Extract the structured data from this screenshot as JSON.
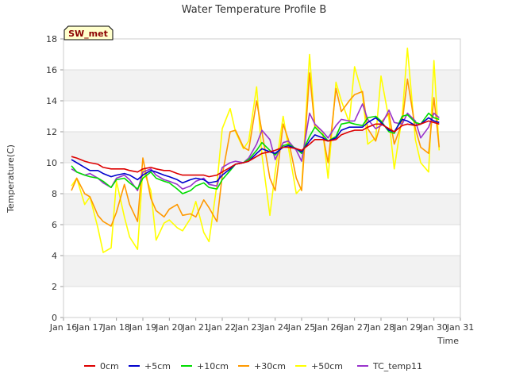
{
  "chart_data": {
    "type": "line",
    "title": "Water Temperature Profile B",
    "xlabel": "Time",
    "ylabel": "Temperature(C)",
    "badge": "SW_met",
    "x_ticks": [
      "Jan 16",
      "Jan 17",
      "Jan 18",
      "Jan 19",
      "Jan 20",
      "Jan 21",
      "Jan 22",
      "Jan 23",
      "Jan 24",
      "Jan 25",
      "Jan 26",
      "Jan 27",
      "Jan 28",
      "Jan 29",
      "Jan 30",
      "Jan 31"
    ],
    "y_ticks": [
      "0",
      "2",
      "4",
      "6",
      "8",
      "10",
      "12",
      "14",
      "16",
      "18"
    ],
    "xlim": [
      16,
      31
    ],
    "ylim": [
      0,
      18
    ],
    "background_bands": true,
    "legend_position": "bottom",
    "x": [
      16.3,
      16.5,
      16.8,
      17.0,
      17.3,
      17.5,
      17.8,
      18.0,
      18.3,
      18.5,
      18.8,
      19.0,
      19.3,
      19.5,
      19.8,
      20.0,
      20.3,
      20.5,
      20.8,
      21.0,
      21.3,
      21.5,
      21.8,
      22.0,
      22.3,
      22.5,
      22.8,
      23.0,
      23.3,
      23.5,
      23.8,
      24.0,
      24.3,
      24.5,
      24.8,
      25.0,
      25.3,
      25.5,
      25.8,
      26.0,
      26.3,
      26.5,
      26.8,
      27.0,
      27.3,
      27.5,
      27.8,
      28.0,
      28.3,
      28.5,
      28.8,
      29.0,
      29.3,
      29.5,
      29.8,
      30.0,
      30.2
    ],
    "series": [
      {
        "name": "0cm",
        "color": "#dd0000",
        "values": [
          10.4,
          10.3,
          10.1,
          10.0,
          9.9,
          9.7,
          9.6,
          9.6,
          9.6,
          9.5,
          9.4,
          9.6,
          9.7,
          9.6,
          9.5,
          9.5,
          9.3,
          9.2,
          9.2,
          9.2,
          9.2,
          9.1,
          9.2,
          9.4,
          9.7,
          9.9,
          10.0,
          10.1,
          10.4,
          10.6,
          10.7,
          10.8,
          11.0,
          11.0,
          10.9,
          10.8,
          11.2,
          11.5,
          11.5,
          11.4,
          11.5,
          11.8,
          12.0,
          12.1,
          12.1,
          12.3,
          12.5,
          12.5,
          12.2,
          12.0,
          12.4,
          12.5,
          12.4,
          12.5,
          12.7,
          12.6,
          12.5
        ]
      },
      {
        "name": "+5cm",
        "color": "#0000cc",
        "values": [
          10.2,
          10.0,
          9.7,
          9.5,
          9.5,
          9.3,
          9.1,
          9.2,
          9.3,
          9.2,
          8.9,
          9.2,
          9.5,
          9.4,
          9.2,
          9.1,
          8.9,
          8.7,
          8.9,
          9.0,
          8.9,
          8.7,
          8.8,
          9.2,
          9.6,
          9.9,
          10.0,
          10.1,
          10.6,
          10.9,
          10.7,
          10.6,
          11.0,
          11.1,
          10.9,
          10.7,
          11.4,
          11.8,
          11.6,
          11.4,
          11.6,
          12.1,
          12.3,
          12.3,
          12.3,
          12.6,
          12.9,
          12.6,
          12.1,
          12.0,
          12.8,
          12.7,
          12.4,
          12.5,
          12.9,
          12.7,
          12.6
        ]
      },
      {
        "name": "+10cm",
        "color": "#00dd00",
        "values": [
          9.8,
          9.4,
          9.2,
          9.1,
          9.0,
          8.8,
          8.4,
          8.9,
          9.0,
          8.7,
          8.3,
          9.0,
          9.4,
          9.0,
          8.8,
          8.7,
          8.3,
          8.0,
          8.2,
          8.5,
          8.7,
          8.4,
          8.3,
          8.9,
          9.5,
          9.9,
          10.0,
          10.2,
          10.8,
          11.3,
          10.8,
          10.5,
          11.1,
          11.2,
          10.9,
          10.6,
          11.7,
          12.3,
          11.8,
          11.4,
          11.7,
          12.5,
          12.6,
          12.5,
          12.4,
          12.9,
          13.0,
          12.7,
          12.0,
          11.9,
          13.0,
          13.1,
          12.6,
          12.5,
          13.2,
          12.9,
          12.8
        ]
      },
      {
        "name": "+30cm",
        "color": "#ff9900",
        "values": [
          8.2,
          9.0,
          8.0,
          7.8,
          6.6,
          6.2,
          5.9,
          6.8,
          8.6,
          7.3,
          6.2,
          10.3,
          7.7,
          6.9,
          6.5,
          7.0,
          7.3,
          6.6,
          6.7,
          6.5,
          7.6,
          7.1,
          6.2,
          9.2,
          12.0,
          12.1,
          11.0,
          10.8,
          14.0,
          12.0,
          9.0,
          8.2,
          12.5,
          11.5,
          9.0,
          8.2,
          15.8,
          12.3,
          11.8,
          10.0,
          14.8,
          13.3,
          14.0,
          14.4,
          14.6,
          12.2,
          11.4,
          12.6,
          13.2,
          11.2,
          12.6,
          15.4,
          12.2,
          11.0,
          10.6,
          14.2,
          11.0
        ]
      },
      {
        "name": "+50cm",
        "color": "#ffff00",
        "values": [
          8.5,
          9.0,
          7.3,
          7.8,
          5.8,
          4.2,
          4.5,
          8.8,
          6.5,
          5.2,
          4.4,
          9.6,
          8.2,
          5.0,
          6.1,
          6.3,
          5.8,
          5.6,
          6.4,
          7.5,
          5.5,
          4.9,
          8.6,
          12.2,
          13.5,
          12.0,
          10.9,
          11.4,
          14.9,
          10.5,
          6.6,
          9.4,
          13.0,
          11.0,
          8.0,
          8.4,
          17.0,
          12.4,
          12.0,
          9.0,
          15.2,
          14.0,
          12.6,
          16.2,
          14.4,
          11.2,
          11.6,
          15.6,
          12.8,
          9.6,
          13.0,
          17.4,
          11.5,
          10.0,
          9.4,
          16.6,
          10.8
        ]
      },
      {
        "name": "TC_temp11",
        "color": "#9933cc",
        "values": [
          9.6,
          9.4,
          9.2,
          9.3,
          9.0,
          8.7,
          8.4,
          9.0,
          9.2,
          8.9,
          8.2,
          9.4,
          9.6,
          9.2,
          8.9,
          8.8,
          8.6,
          8.3,
          8.5,
          8.8,
          9.0,
          8.6,
          8.5,
          9.7,
          10.0,
          10.1,
          10.0,
          10.3,
          11.2,
          12.1,
          11.5,
          10.2,
          11.3,
          11.4,
          10.8,
          10.1,
          13.2,
          12.5,
          12.0,
          11.6,
          12.4,
          12.8,
          12.7,
          12.7,
          13.8,
          12.8,
          12.2,
          12.4,
          13.4,
          12.6,
          12.5,
          13.2,
          12.7,
          11.6,
          12.3,
          13.2,
          12.9
        ]
      }
    ]
  }
}
